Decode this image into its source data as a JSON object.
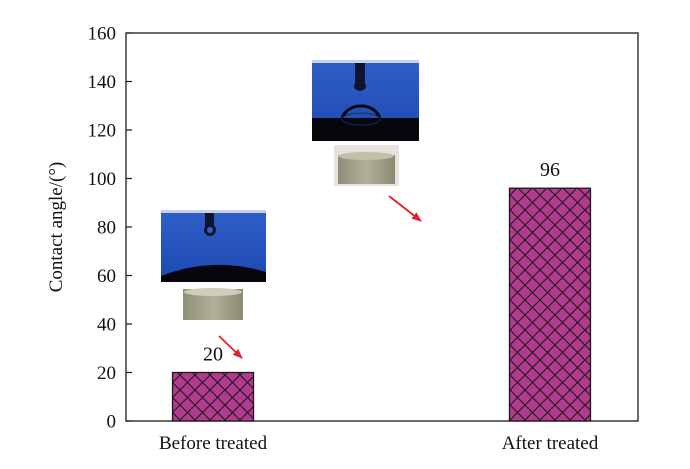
{
  "chart_data": {
    "type": "bar",
    "categories": [
      "Before treated",
      "After treated"
    ],
    "values": [
      20,
      96
    ],
    "data_labels": [
      "20",
      "96"
    ],
    "title": "",
    "xlabel": "",
    "ylabel": "Contact angle/(°)",
    "ylim": [
      0,
      160
    ],
    "yticks": [
      0,
      20,
      40,
      60,
      80,
      100,
      120,
      140,
      160
    ],
    "grid": false,
    "legend": "none",
    "bar_fill": "#b23a8f",
    "bar_pattern": "crosshatch",
    "bar_edge": "#1a1a1a",
    "arrow_color": "#e0202a"
  }
}
